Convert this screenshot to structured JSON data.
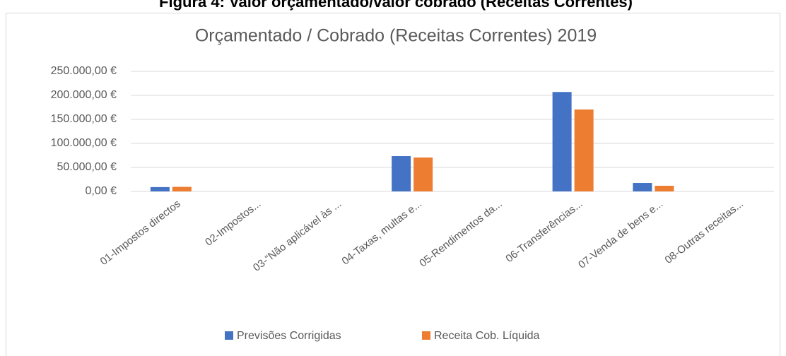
{
  "heading": "Figura 4: Valor orçamentado/valor cobrado (Receitas Correntes)",
  "chart_data": {
    "type": "bar",
    "title": "Orçamentado / Cobrado (Receitas Correntes) 2019",
    "categories": [
      "01-Impostos directos",
      "02-Impostos...",
      "03-“Não aplicável às ...",
      "04-Taxas, multas e...",
      "05-Rendimentos da...",
      "06-Transferências...",
      "07-Venda de bens e...",
      "08-Outras receitas..."
    ],
    "series": [
      {
        "name": "Previsões Corrigidas",
        "color": "#4472c4",
        "values": [
          9000,
          0,
          0,
          73500,
          0,
          207000,
          17600,
          0
        ]
      },
      {
        "name": "Receita Cob. Líquida",
        "color": "#ed7d31",
        "values": [
          9500,
          0,
          0,
          70600,
          0,
          170600,
          11800,
          0
        ]
      }
    ],
    "ylim": [
      0,
      250000
    ],
    "yticks": [
      {
        "value": 0,
        "label": "0,00 €"
      },
      {
        "value": 50000,
        "label": "50.000,00 €"
      },
      {
        "value": 100000,
        "label": "100.000,00 €"
      },
      {
        "value": 150000,
        "label": "150.000,00 €"
      },
      {
        "value": 200000,
        "label": "200.000,00 €"
      },
      {
        "value": 250000,
        "label": "250.000,00 €"
      }
    ],
    "grid": true,
    "legend": "bottom"
  }
}
